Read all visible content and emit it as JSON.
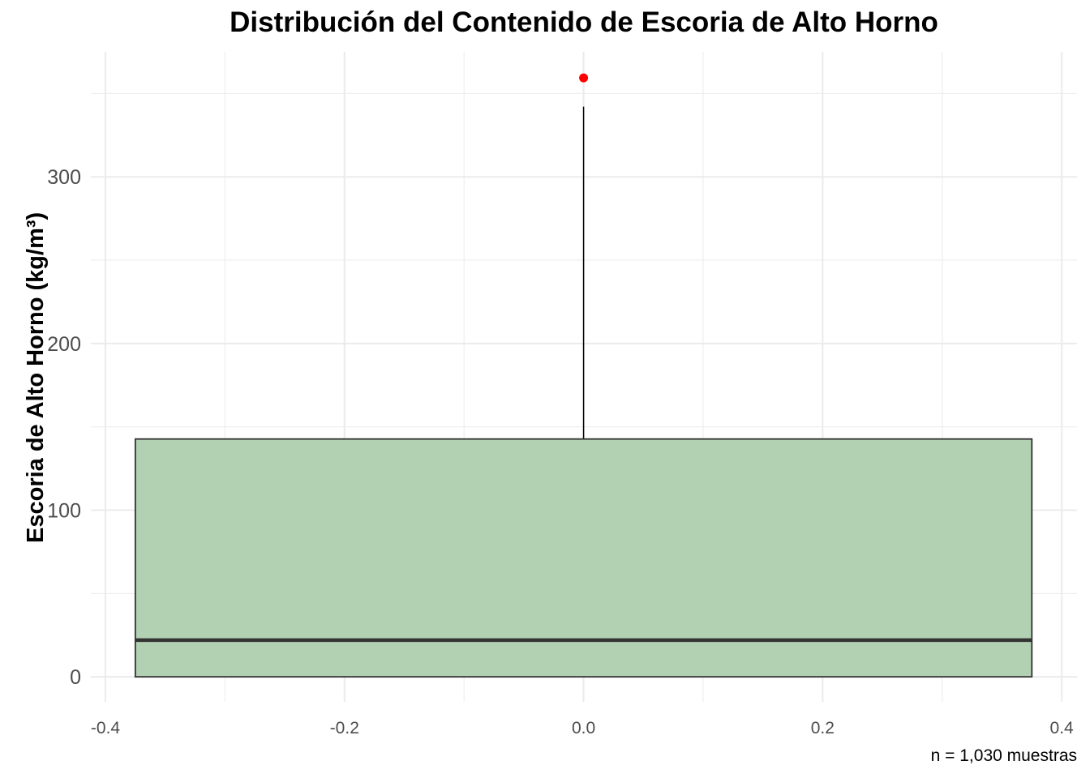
{
  "chart_data": {
    "type": "boxplot",
    "title": "Distribución del Contenido de Escoria de Alto Horno",
    "xlabel": "",
    "ylabel": "Escoria de Alto Horno (kg/m³)",
    "caption": "n = 1,030 muestras",
    "xlim": [
      -0.4,
      0.4
    ],
    "ylim": [
      -15,
      375
    ],
    "x_ticks": [
      -0.4,
      -0.2,
      0.0,
      0.2,
      0.4
    ],
    "x_tick_labels": [
      "-0.4",
      "-0.2",
      "0.0",
      "0.2",
      "0.4"
    ],
    "y_ticks": [
      0,
      100,
      200,
      300
    ],
    "y_tick_labels": [
      "0",
      "100",
      "200",
      "300"
    ],
    "grid": true,
    "box": {
      "x_center": 0.0,
      "x_left": -0.375,
      "x_right": 0.375,
      "min": 0,
      "q1": 0,
      "median": 22,
      "q3": 142.7,
      "whisker_high": 342.1,
      "outliers": [
        359.4
      ]
    },
    "colors": {
      "box_fill": "#b2d0b2",
      "box_stroke": "#333333",
      "outlier": "#ff0000",
      "grid": "#ebebeb"
    }
  }
}
